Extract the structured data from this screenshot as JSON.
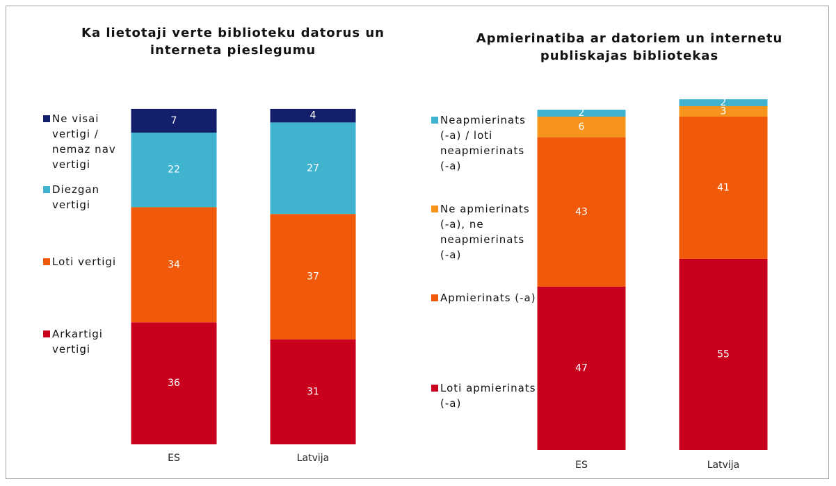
{
  "chart_data": [
    {
      "type": "bar",
      "stacked": true,
      "title": "Ka lietotaji verte biblioteku datorus un interneta pieslegumu",
      "categories": [
        "ES",
        "Latvija"
      ],
      "ylim": [
        0,
        100
      ],
      "series": [
        {
          "name": "Arkartigi vertigi",
          "color": "#c8001e",
          "values": [
            36,
            31
          ]
        },
        {
          "name": "Loti vertigi",
          "color": "#f05a0a",
          "values": [
            34,
            37
          ]
        },
        {
          "name": "Diezgan vertigi",
          "color": "#40b4cf",
          "values": [
            22,
            27
          ]
        },
        {
          "name": "Ne visai vertigi / nemaz nav vertigi",
          "color": "#141f6b",
          "values": [
            7,
            4
          ]
        }
      ]
    },
    {
      "type": "bar",
      "stacked": true,
      "title": "Apmierinatiba ar datoriem un internetu publiskajas bibliotekas",
      "categories": [
        "ES",
        "Latvija"
      ],
      "ylim": [
        0,
        100
      ],
      "series": [
        {
          "name": "Loti apmierinats (-a)",
          "color": "#c8001e",
          "values": [
            47,
            55
          ]
        },
        {
          "name": "Apmierinats (-a)",
          "color": "#f05a0a",
          "values": [
            43,
            41
          ]
        },
        {
          "name": "Ne apmierinats (-a), ne neapmierinats (-a)",
          "color": "#f7941d",
          "values": [
            6,
            3
          ]
        },
        {
          "name": "Neapmierinats (-a) / loti neapmierinats (-a)",
          "color": "#40b4cf",
          "values": [
            2,
            2
          ]
        }
      ]
    }
  ]
}
